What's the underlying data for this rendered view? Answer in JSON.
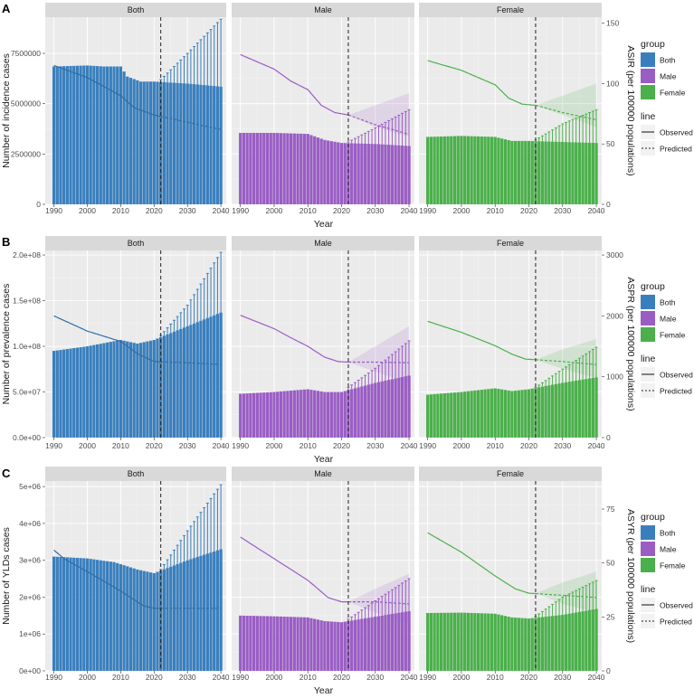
{
  "chart_data": {
    "type": "bar",
    "description_years": "Bars are annual case counts 1990-2040 (observed to 2021, predicted from 2022 with upper error bars); line is age-standardized rate on secondary (right) axis.",
    "x": {
      "label": "Year",
      "start": 1990,
      "end": 2040,
      "ticks": [
        1990,
        2000,
        2010,
        2020,
        2030,
        2040
      ],
      "cut_year": 2022
    },
    "facets": [
      "Both",
      "Male",
      "Female"
    ],
    "colors": {
      "Both": "#3a7fbd",
      "Male": "#9a5dc4",
      "Female": "#4bb04b",
      "Line": "#404040"
    },
    "legend": {
      "group_title": "group",
      "groups": [
        "Both",
        "Male",
        "Female"
      ],
      "line_title": "line",
      "lines": [
        "Observed",
        "Predicted"
      ]
    },
    "rows": [
      {
        "letter": "A",
        "ylabel": "Number of incidence cases",
        "y2label": "ASIR (per 100000 populations)",
        "ylim": [
          0,
          9300000
        ],
        "yticks": [
          0,
          2500000,
          5000000,
          7500000
        ],
        "ytick_labels": [
          "0",
          "2500000",
          "5000000",
          "7500000"
        ],
        "y2lim": [
          0,
          155
        ],
        "y2ticks": [
          0,
          50,
          100,
          150
        ],
        "y2tick_labels": [
          "0",
          "50",
          "100",
          "150"
        ],
        "series": [
          {
            "name": "Both",
            "bar_knots": [
              [
                1990,
                6850000
              ],
              [
                2000,
                6900000
              ],
              [
                2005,
                6850000
              ],
              [
                2010,
                6850000
              ],
              [
                2012,
                6350000
              ],
              [
                2016,
                6100000
              ],
              [
                2020,
                6100000
              ],
              [
                2030,
                6000000
              ],
              [
                2040,
                5850000
              ]
            ],
            "err_knots": [
              [
                2022,
                6200000
              ],
              [
                2030,
                7500000
              ],
              [
                2040,
                9200000
              ]
            ],
            "line_knots": [
              [
                1990,
                115
              ],
              [
                2000,
                105
              ],
              [
                2010,
                90
              ],
              [
                2014,
                80
              ],
              [
                2020,
                74
              ],
              [
                2030,
                68
              ],
              [
                2040,
                62
              ]
            ],
            "band_knots": []
          },
          {
            "name": "Male",
            "bar_knots": [
              [
                1990,
                3550000
              ],
              [
                2000,
                3550000
              ],
              [
                2010,
                3500000
              ],
              [
                2015,
                3200000
              ],
              [
                2020,
                3050000
              ],
              [
                2030,
                3000000
              ],
              [
                2040,
                2900000
              ]
            ],
            "err_knots": [
              [
                2022,
                3100000
              ],
              [
                2030,
                3800000
              ],
              [
                2040,
                4700000
              ]
            ],
            "line_knots": [
              [
                1990,
                124
              ],
              [
                2000,
                112
              ],
              [
                2005,
                102
              ],
              [
                2010,
                95
              ],
              [
                2014,
                82
              ],
              [
                2018,
                76
              ],
              [
                2022,
                74
              ],
              [
                2030,
                66
              ],
              [
                2040,
                58
              ]
            ],
            "band_knots": [
              [
                2022,
                74,
                74
              ],
              [
                2030,
                64,
                82
              ],
              [
                2040,
                56,
                92
              ]
            ]
          },
          {
            "name": "Female",
            "bar_knots": [
              [
                1990,
                3350000
              ],
              [
                2000,
                3400000
              ],
              [
                2010,
                3350000
              ],
              [
                2015,
                3150000
              ],
              [
                2020,
                3150000
              ],
              [
                2030,
                3100000
              ],
              [
                2040,
                3050000
              ]
            ],
            "err_knots": [
              [
                2022,
                3200000
              ],
              [
                2030,
                4000000
              ],
              [
                2040,
                4700000
              ]
            ],
            "line_knots": [
              [
                1990,
                119
              ],
              [
                2000,
                111
              ],
              [
                2010,
                99
              ],
              [
                2014,
                88
              ],
              [
                2018,
                83
              ],
              [
                2022,
                82
              ],
              [
                2030,
                76
              ],
              [
                2040,
                70
              ]
            ],
            "band_knots": [
              [
                2022,
                82,
                82
              ],
              [
                2030,
                74,
                90
              ],
              [
                2040,
                64,
                100
              ]
            ]
          }
        ]
      },
      {
        "letter": "B",
        "ylabel": "Number of prevalence cases",
        "y2label": "ASPR (per 100000 populations)",
        "ylim": [
          0,
          205000000
        ],
        "yticks": [
          0,
          50000000,
          100000000,
          150000000,
          200000000
        ],
        "ytick_labels": [
          "0.0e+00",
          "5.0e+07",
          "1.0e+08",
          "1.5e+08",
          "2.0e+08"
        ],
        "y2lim": [
          0,
          3075
        ],
        "y2ticks": [
          0,
          1000,
          2000,
          3000
        ],
        "y2tick_labels": [
          "0",
          "1000",
          "2000",
          "3000"
        ],
        "series": [
          {
            "name": "Both",
            "bar_knots": [
              [
                1990,
                95000000
              ],
              [
                2000,
                100000000
              ],
              [
                2010,
                107000000
              ],
              [
                2015,
                103000000
              ],
              [
                2020,
                107000000
              ],
              [
                2030,
                122000000
              ],
              [
                2040,
                137000000
              ]
            ],
            "err_knots": [
              [
                2022,
                112000000
              ],
              [
                2030,
                145000000
              ],
              [
                2040,
                203000000
              ]
            ],
            "line_knots": [
              [
                1990,
                2000
              ],
              [
                2000,
                1750
              ],
              [
                2010,
                1580
              ],
              [
                2015,
                1380
              ],
              [
                2020,
                1250
              ],
              [
                2030,
                1230
              ],
              [
                2040,
                1200
              ]
            ],
            "band_knots": []
          },
          {
            "name": "Male",
            "bar_knots": [
              [
                1990,
                48000000
              ],
              [
                2000,
                50000000
              ],
              [
                2010,
                53000000
              ],
              [
                2015,
                50000000
              ],
              [
                2020,
                50000000
              ],
              [
                2030,
                60000000
              ],
              [
                2040,
                68000000
              ]
            ],
            "err_knots": [
              [
                2022,
                55000000
              ],
              [
                2030,
                76000000
              ],
              [
                2040,
                106000000
              ]
            ],
            "line_knots": [
              [
                1990,
                2010
              ],
              [
                2000,
                1790
              ],
              [
                2005,
                1640
              ],
              [
                2010,
                1500
              ],
              [
                2015,
                1320
              ],
              [
                2019,
                1250
              ],
              [
                2022,
                1240
              ],
              [
                2030,
                1240
              ],
              [
                2040,
                1230
              ]
            ],
            "band_knots": [
              [
                2022,
                1240,
                1240
              ],
              [
                2030,
                1080,
                1500
              ],
              [
                2040,
                900,
                1830
              ]
            ]
          },
          {
            "name": "Female",
            "bar_knots": [
              [
                1990,
                47000000
              ],
              [
                2000,
                50000000
              ],
              [
                2010,
                54000000
              ],
              [
                2015,
                51000000
              ],
              [
                2020,
                53000000
              ],
              [
                2030,
                60000000
              ],
              [
                2040,
                66000000
              ]
            ],
            "err_knots": [
              [
                2022,
                55000000
              ],
              [
                2030,
                75000000
              ],
              [
                2040,
                99000000
              ]
            ],
            "line_knots": [
              [
                1990,
                1910
              ],
              [
                2000,
                1730
              ],
              [
                2010,
                1510
              ],
              [
                2015,
                1370
              ],
              [
                2019,
                1290
              ],
              [
                2022,
                1280
              ],
              [
                2030,
                1250
              ],
              [
                2040,
                1200
              ]
            ],
            "band_knots": [
              [
                2022,
                1280,
                1280
              ],
              [
                2030,
                1130,
                1450
              ],
              [
                2040,
                980,
                1620
              ]
            ]
          }
        ]
      },
      {
        "letter": "C",
        "ylabel": "Number of YLDs cases",
        "y2label": "ASYR (per 100000 populations)",
        "ylim": [
          0,
          5150000
        ],
        "yticks": [
          0,
          1000000,
          2000000,
          3000000,
          4000000,
          5000000
        ],
        "ytick_labels": [
          "0e+00",
          "1e+06",
          "2e+06",
          "3e+06",
          "4e+06",
          "5e+06"
        ],
        "y2lim": [
          0,
          88
        ],
        "y2ticks": [
          0,
          25,
          50,
          75
        ],
        "y2tick_labels": [
          "0",
          "25",
          "50",
          "75"
        ],
        "series": [
          {
            "name": "Both",
            "bar_knots": [
              [
                1990,
                3100000
              ],
              [
                2000,
                3050000
              ],
              [
                2008,
                2950000
              ],
              [
                2015,
                2750000
              ],
              [
                2020,
                2650000
              ],
              [
                2030,
                3000000
              ],
              [
                2040,
                3300000
              ]
            ],
            "err_knots": [
              [
                2022,
                2750000
              ],
              [
                2030,
                3800000
              ],
              [
                2040,
                5050000
              ]
            ],
            "line_knots": [
              [
                1990,
                56
              ],
              [
                1993,
                52
              ],
              [
                2000,
                46
              ],
              [
                2010,
                37
              ],
              [
                2017,
                30
              ],
              [
                2020,
                29
              ],
              [
                2030,
                29
              ],
              [
                2040,
                29
              ]
            ],
            "band_knots": []
          },
          {
            "name": "Male",
            "bar_knots": [
              [
                1990,
                1500000
              ],
              [
                2000,
                1480000
              ],
              [
                2010,
                1450000
              ],
              [
                2015,
                1350000
              ],
              [
                2020,
                1320000
              ],
              [
                2030,
                1470000
              ],
              [
                2040,
                1620000
              ]
            ],
            "err_knots": [
              [
                2022,
                1400000
              ],
              [
                2030,
                1900000
              ],
              [
                2040,
                2500000
              ]
            ],
            "line_knots": [
              [
                1990,
                62
              ],
              [
                2000,
                52
              ],
              [
                2010,
                42
              ],
              [
                2016,
                34
              ],
              [
                2020,
                32
              ],
              [
                2030,
                32
              ],
              [
                2040,
                31
              ]
            ],
            "band_knots": [
              [
                2022,
                32,
                32
              ],
              [
                2030,
                27,
                38
              ],
              [
                2040,
                22,
                45
              ]
            ]
          },
          {
            "name": "Female",
            "bar_knots": [
              [
                1990,
                1570000
              ],
              [
                2000,
                1580000
              ],
              [
                2010,
                1550000
              ],
              [
                2015,
                1450000
              ],
              [
                2020,
                1420000
              ],
              [
                2030,
                1520000
              ],
              [
                2040,
                1680000
              ]
            ],
            "err_knots": [
              [
                2022,
                1480000
              ],
              [
                2030,
                2000000
              ],
              [
                2040,
                2450000
              ]
            ],
            "line_knots": [
              [
                1990,
                64
              ],
              [
                2000,
                55
              ],
              [
                2010,
                44
              ],
              [
                2016,
                38
              ],
              [
                2020,
                36
              ],
              [
                2030,
                35
              ],
              [
                2040,
                34
              ]
            ],
            "band_knots": [
              [
                2022,
                36,
                36
              ],
              [
                2030,
                31,
                41
              ],
              [
                2040,
                27,
                46
              ]
            ]
          }
        ]
      }
    ]
  }
}
